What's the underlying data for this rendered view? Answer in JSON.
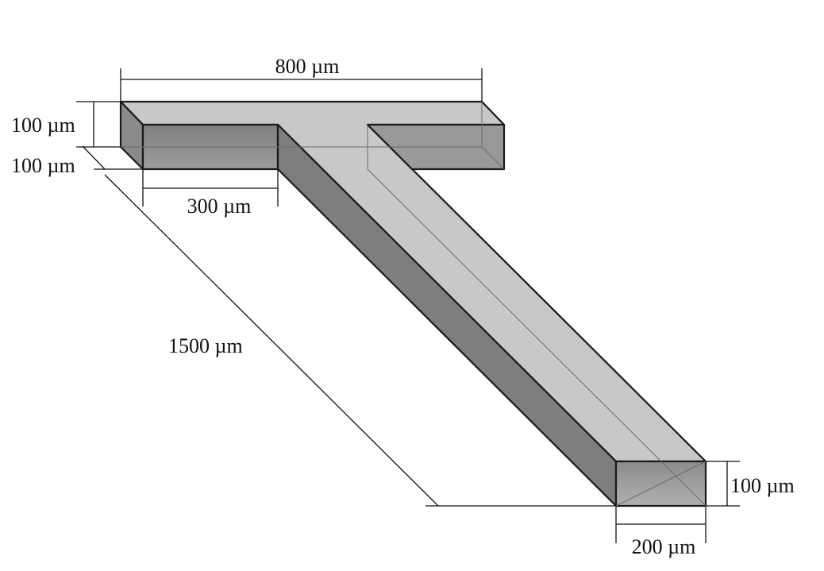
{
  "diagram": {
    "colors": {
      "top_surface": "#c8c8c8",
      "front_face": "#8f8f8f",
      "side_face": "#7e7e7e",
      "outlet_face": "#9a9a9a",
      "edge": "#1a1a1a",
      "hidden_edge": "#6a6a6a"
    },
    "dimensions": {
      "top_width": "800 µm",
      "left_height": "100 µm",
      "left_depth": "100 µm",
      "inlet_width": "300 µm",
      "channel_length": "1500 µm",
      "outlet_height": "100 µm",
      "outlet_width": "200 µm"
    }
  }
}
